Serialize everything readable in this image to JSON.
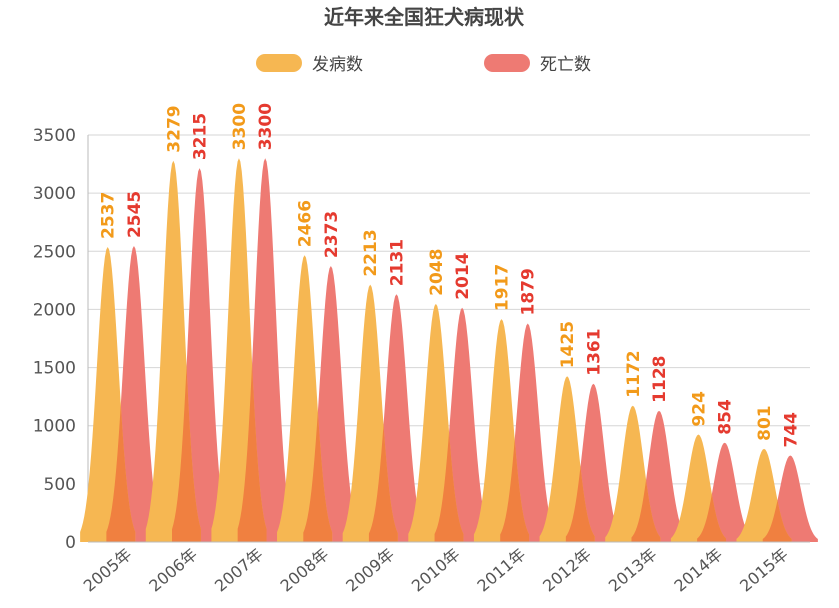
{
  "chart_data": {
    "type": "area",
    "title": "近年来全国狂犬病现状",
    "categories": [
      "2005年",
      "2006年",
      "2007年",
      "2008年",
      "2009年",
      "2010年",
      "2011年",
      "2012年",
      "2013年",
      "2014年",
      "2015年"
    ],
    "series": [
      {
        "name": "发病数",
        "color": "#F6B752",
        "label_color": "#F29A1A",
        "values": [
          2537,
          3279,
          3300,
          2466,
          2213,
          2048,
          1917,
          1425,
          1172,
          924,
          801
        ]
      },
      {
        "name": "死亡数",
        "color": "#EE7A73",
        "label_color": "#E53A2F",
        "values": [
          2545,
          3215,
          3300,
          2373,
          2131,
          2014,
          1879,
          1361,
          1128,
          854,
          744
        ]
      }
    ],
    "ylim": [
      0,
      3500
    ],
    "yticks": [
      0,
      500,
      1000,
      1500,
      2000,
      2500,
      3000,
      3500
    ],
    "grid": true,
    "legend_position": "top",
    "overlap_color": "#F08040"
  }
}
